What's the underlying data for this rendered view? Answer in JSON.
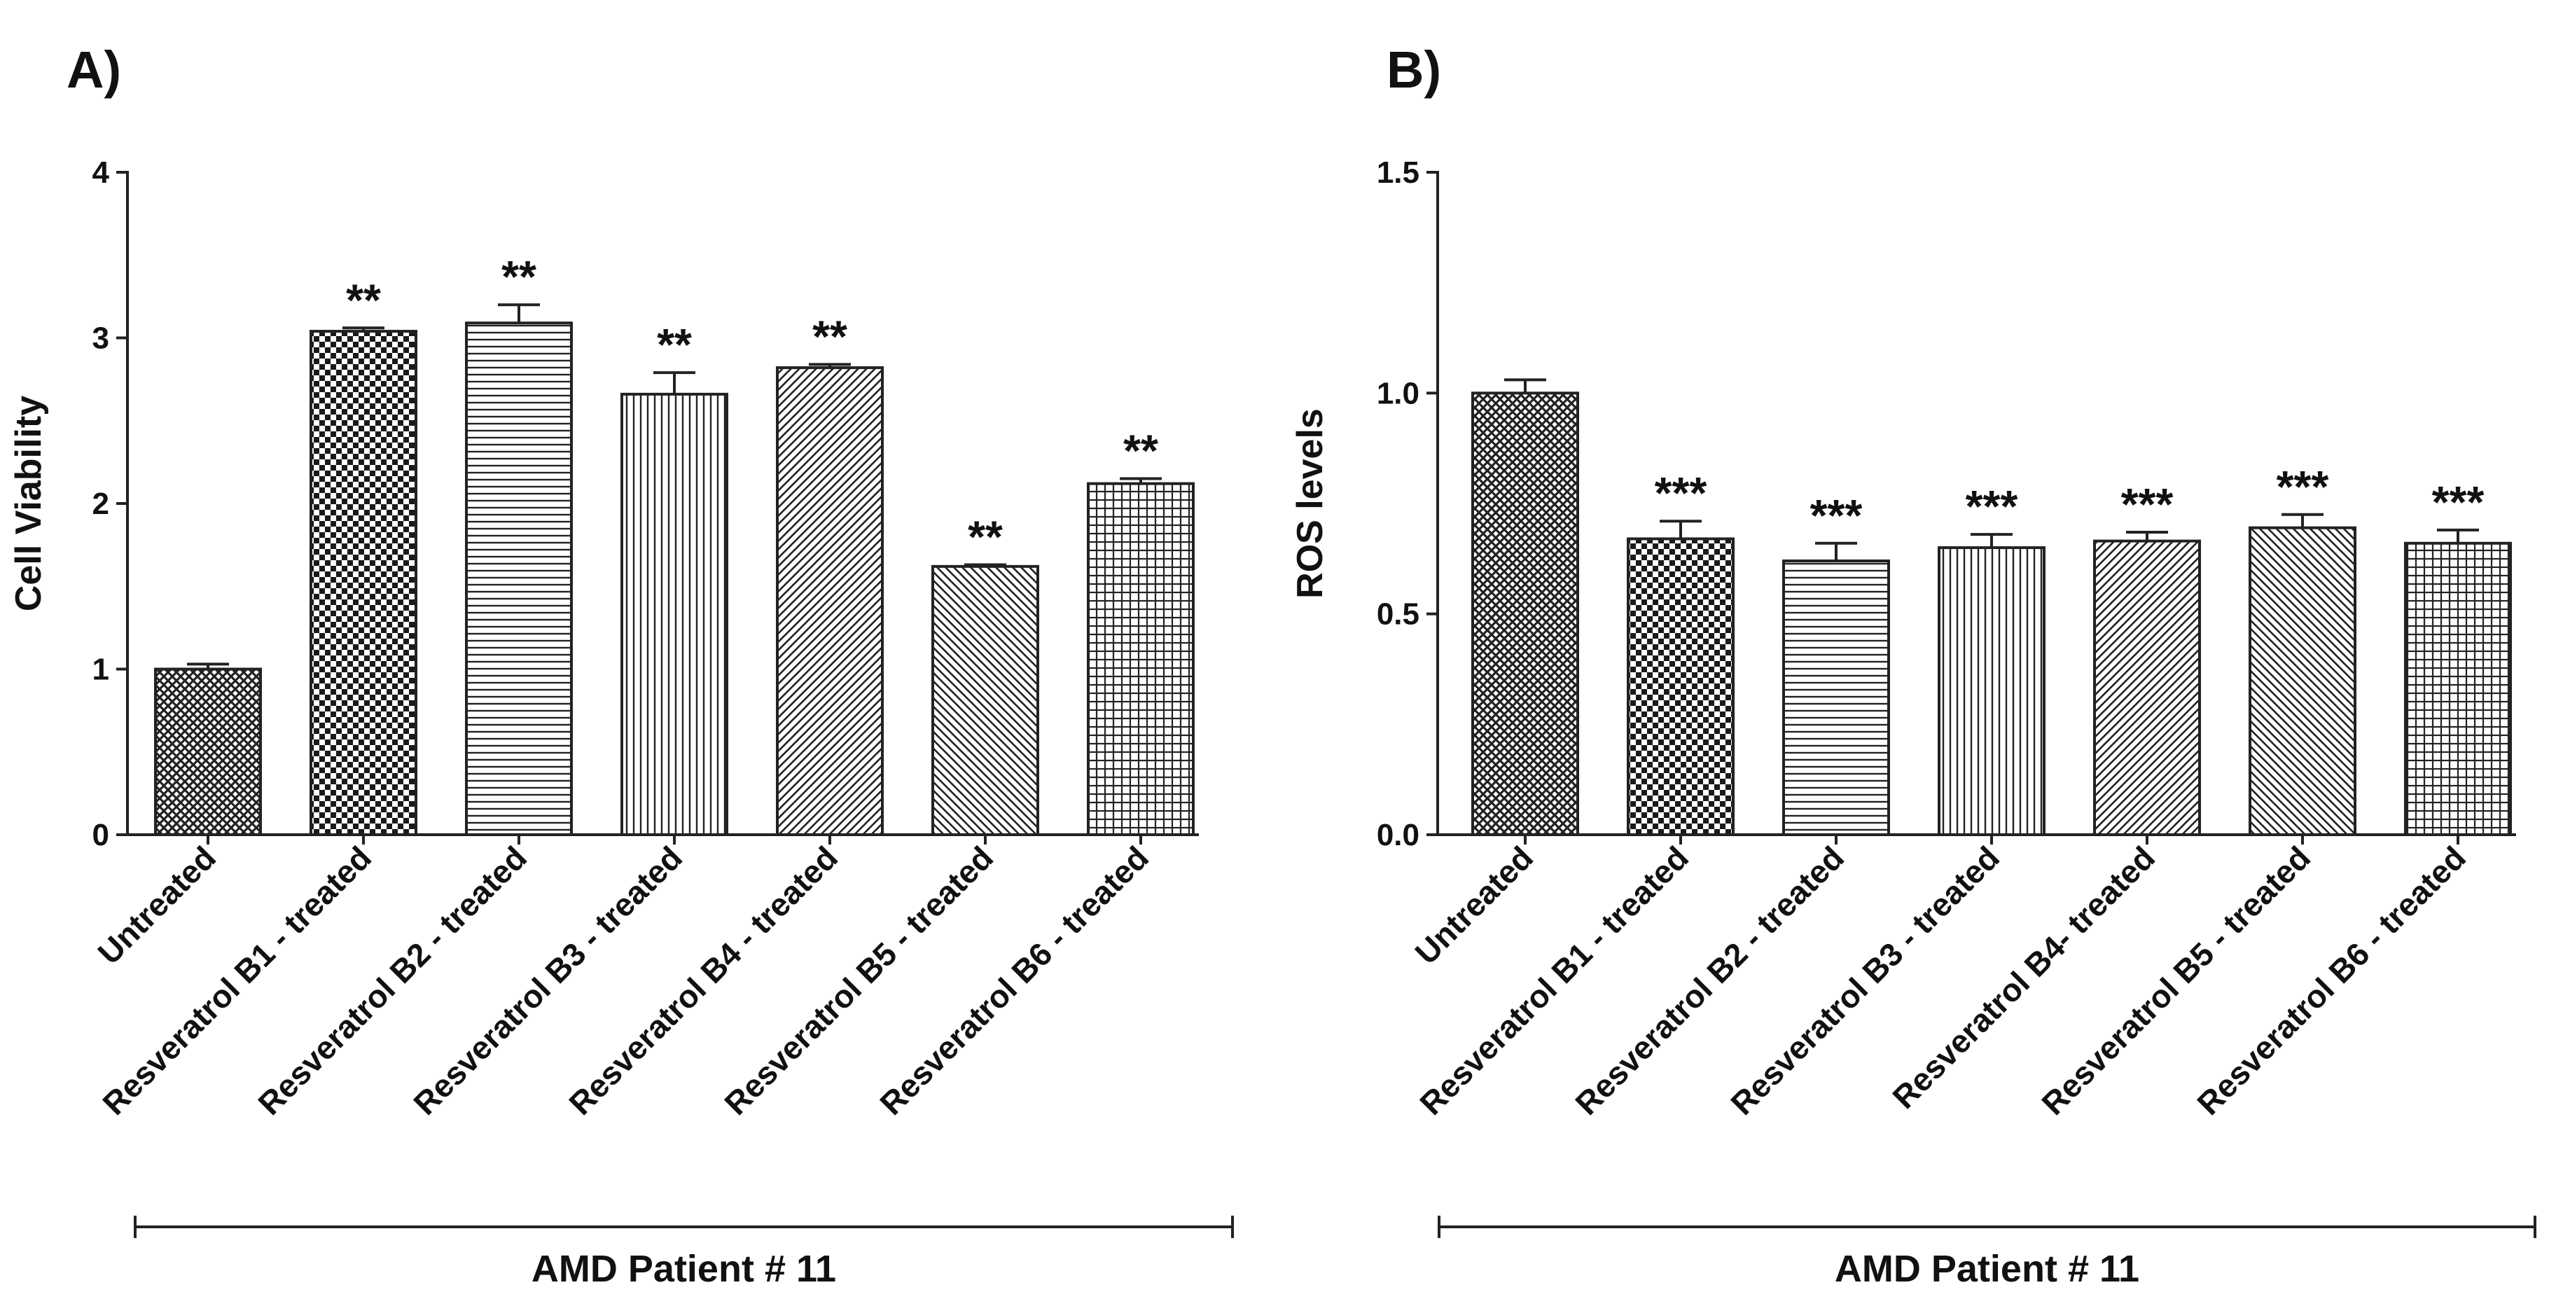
{
  "chart_data": [
    {
      "type": "bar",
      "panel_label": "A)",
      "ylabel": "Cell Viability",
      "xlabel": "",
      "ylim": [
        0,
        4
      ],
      "yticks": [
        "0",
        "1",
        "2",
        "3",
        "4"
      ],
      "group_label": "AMD Patient # 11",
      "categories": [
        "Untreated",
        "Resveratrol B1 - treated",
        "Resveratrol B2 - treated",
        "Resveratrol B3 - treated",
        "Resveratrol B4 - treated",
        "Resveratrol B5 - treated",
        "Resveratrol B6 - treated"
      ],
      "values": [
        1.0,
        3.04,
        3.09,
        2.66,
        2.82,
        1.62,
        2.12
      ],
      "errors": [
        0.03,
        0.02,
        0.11,
        0.13,
        0.02,
        0.01,
        0.03
      ],
      "significance": [
        "",
        "**",
        "**",
        "**",
        "**",
        "**",
        "**"
      ],
      "patterns": [
        "crosshatch",
        "checker",
        "horizontal",
        "vertical",
        "diagonal-up",
        "diagonal-down",
        "grid"
      ],
      "grid": false,
      "legend": "none"
    },
    {
      "type": "bar",
      "panel_label": "B)",
      "ylabel": "ROS levels",
      "xlabel": "",
      "ylim": [
        0,
        1.5
      ],
      "yticks": [
        "0.0",
        "0.5",
        "1.0",
        "1.5"
      ],
      "group_label": "AMD Patient # 11",
      "categories": [
        "Untreated",
        "Resveratrol B1 - treated",
        "Resveratrol B2 - treated",
        "Resveratrol B3 - treated",
        "Resveratrol B4- treated",
        "Resveratrol B5 - treated",
        "Resveratrol B6 - treated"
      ],
      "values": [
        1.0,
        0.67,
        0.62,
        0.65,
        0.665,
        0.695,
        0.66
      ],
      "errors": [
        0.03,
        0.04,
        0.04,
        0.03,
        0.02,
        0.03,
        0.03
      ],
      "significance": [
        "",
        "***",
        "***",
        "***",
        "***",
        "***",
        "***"
      ],
      "patterns": [
        "crosshatch",
        "checker",
        "horizontal",
        "vertical",
        "diagonal-up",
        "diagonal-down",
        "grid"
      ],
      "grid": false,
      "legend": "none"
    }
  ]
}
